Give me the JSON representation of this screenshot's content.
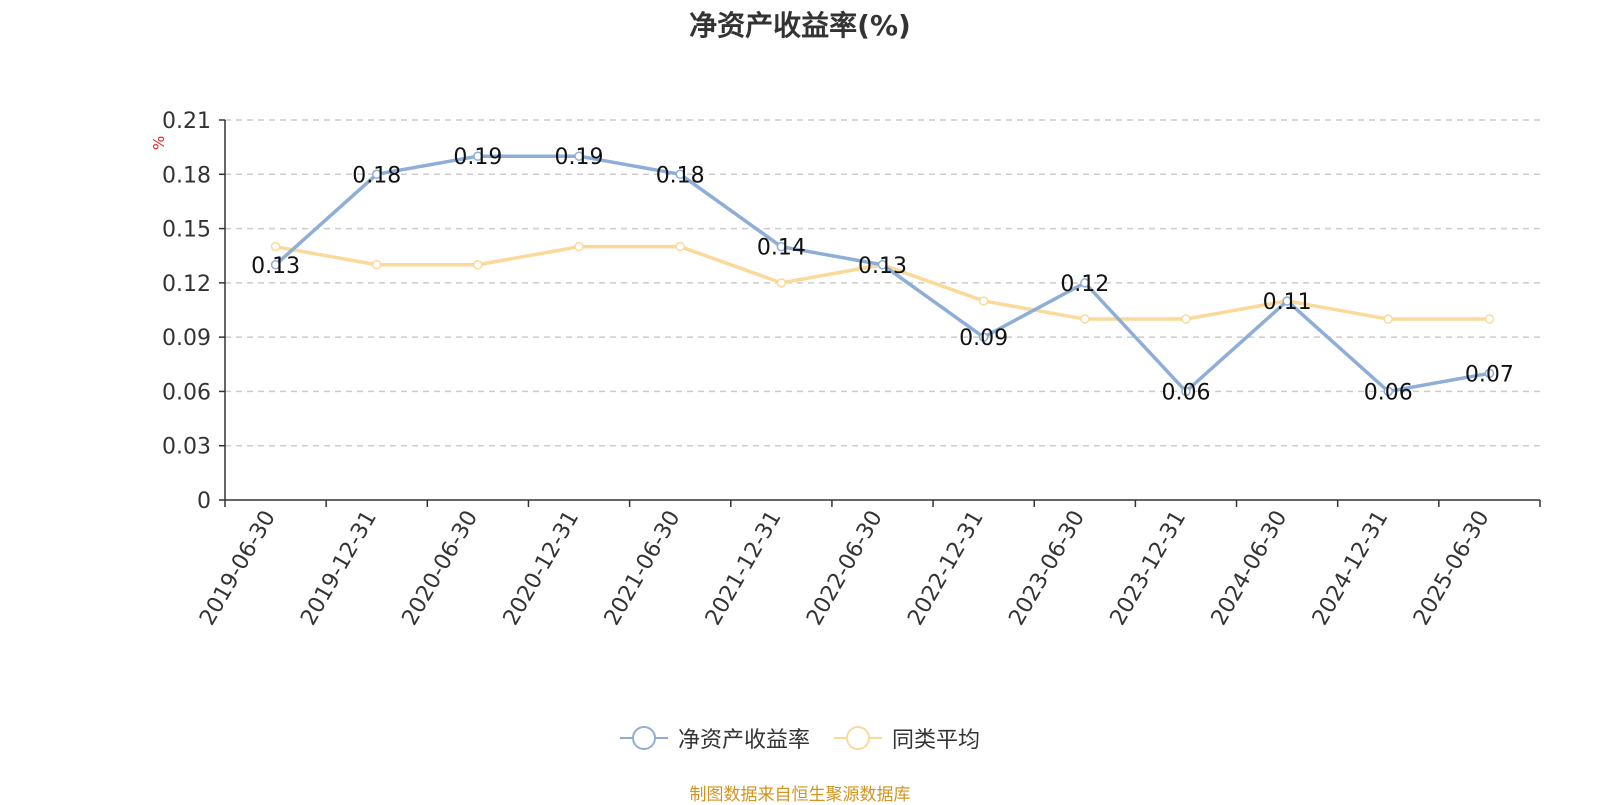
{
  "chart_data": {
    "type": "line",
    "title": "净资产收益率(%)",
    "ylabel": "%",
    "ylim": [
      0,
      0.21
    ],
    "y_ticks": [
      "0",
      "0.03",
      "0.06",
      "0.09",
      "0.12",
      "0.15",
      "0.18",
      "0.21"
    ],
    "categories": [
      "2019-06-30",
      "2019-12-31",
      "2020-06-30",
      "2020-12-31",
      "2021-06-30",
      "2021-12-31",
      "2022-06-30",
      "2022-12-31",
      "2023-06-30",
      "2023-12-31",
      "2024-06-30",
      "2024-12-31",
      "2025-06-30"
    ],
    "grid": true,
    "legend_position": "bottom",
    "series": [
      {
        "name": "净资产收益率",
        "color": "#8eaed8",
        "show_labels": true,
        "values": [
          0.13,
          0.18,
          0.19,
          0.19,
          0.18,
          0.14,
          0.13,
          0.09,
          0.12,
          0.06,
          0.11,
          0.06,
          0.07
        ]
      },
      {
        "name": "同类平均",
        "color": "#fad99a",
        "show_labels": false,
        "values": [
          0.14,
          0.13,
          0.13,
          0.14,
          0.14,
          0.12,
          0.13,
          0.11,
          0.1,
          0.1,
          0.11,
          0.1,
          0.1
        ]
      }
    ]
  },
  "source": "制图数据来自恒生聚源数据库"
}
